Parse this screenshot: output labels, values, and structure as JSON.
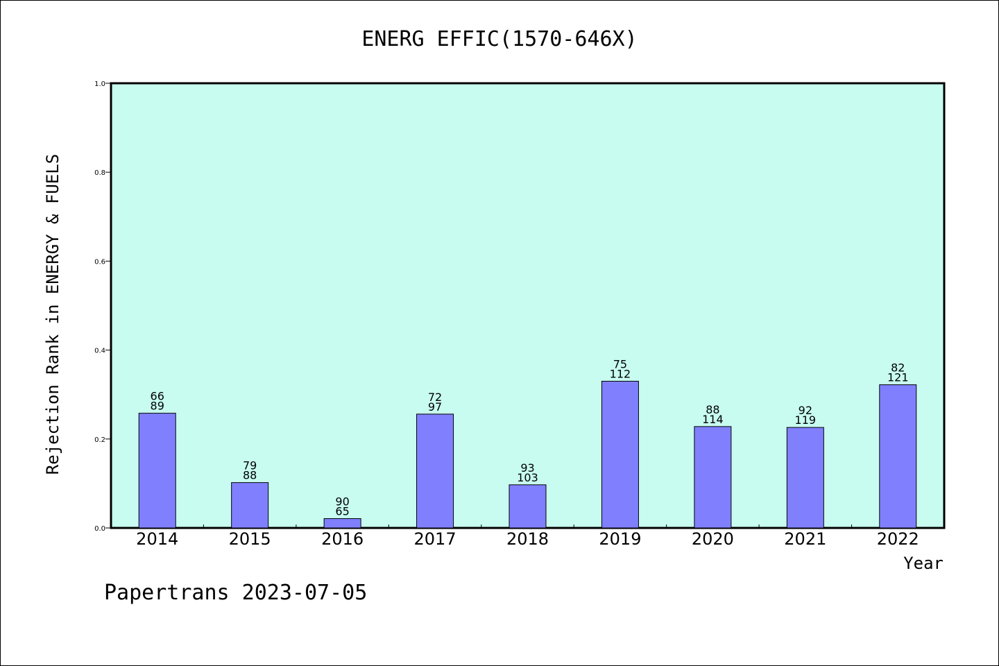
{
  "chart_data": {
    "type": "bar",
    "title": "ENERG EFFIC(1570-646X)",
    "xlabel": "Year",
    "ylabel": "Rejection Rank in ENERGY & FUELS",
    "ylim": [
      0,
      1.0
    ],
    "yticks": [
      "0.0",
      "0.2",
      "0.4",
      "0.6",
      "0.8",
      "1.0"
    ],
    "categories": [
      "2014",
      "2015",
      "2016",
      "2017",
      "2018",
      "2019",
      "2020",
      "2021",
      "2022"
    ],
    "values": [
      0.258,
      0.102,
      0.021,
      0.256,
      0.097,
      0.33,
      0.228,
      0.226,
      0.322
    ],
    "label_top": [
      "66",
      "79",
      "90",
      "72",
      "93",
      "75",
      "88",
      "92",
      "82"
    ],
    "label_bottom": [
      "89",
      "88",
      "65",
      "97",
      "103",
      "112",
      "114",
      "119",
      "121"
    ],
    "grid": false,
    "colors": {
      "plot_background": "#c8fcf0",
      "bar_fill": "#8080ff",
      "bar_stroke": "#000000"
    }
  },
  "footer": {
    "text": "Papertrans 2023-07-05"
  }
}
